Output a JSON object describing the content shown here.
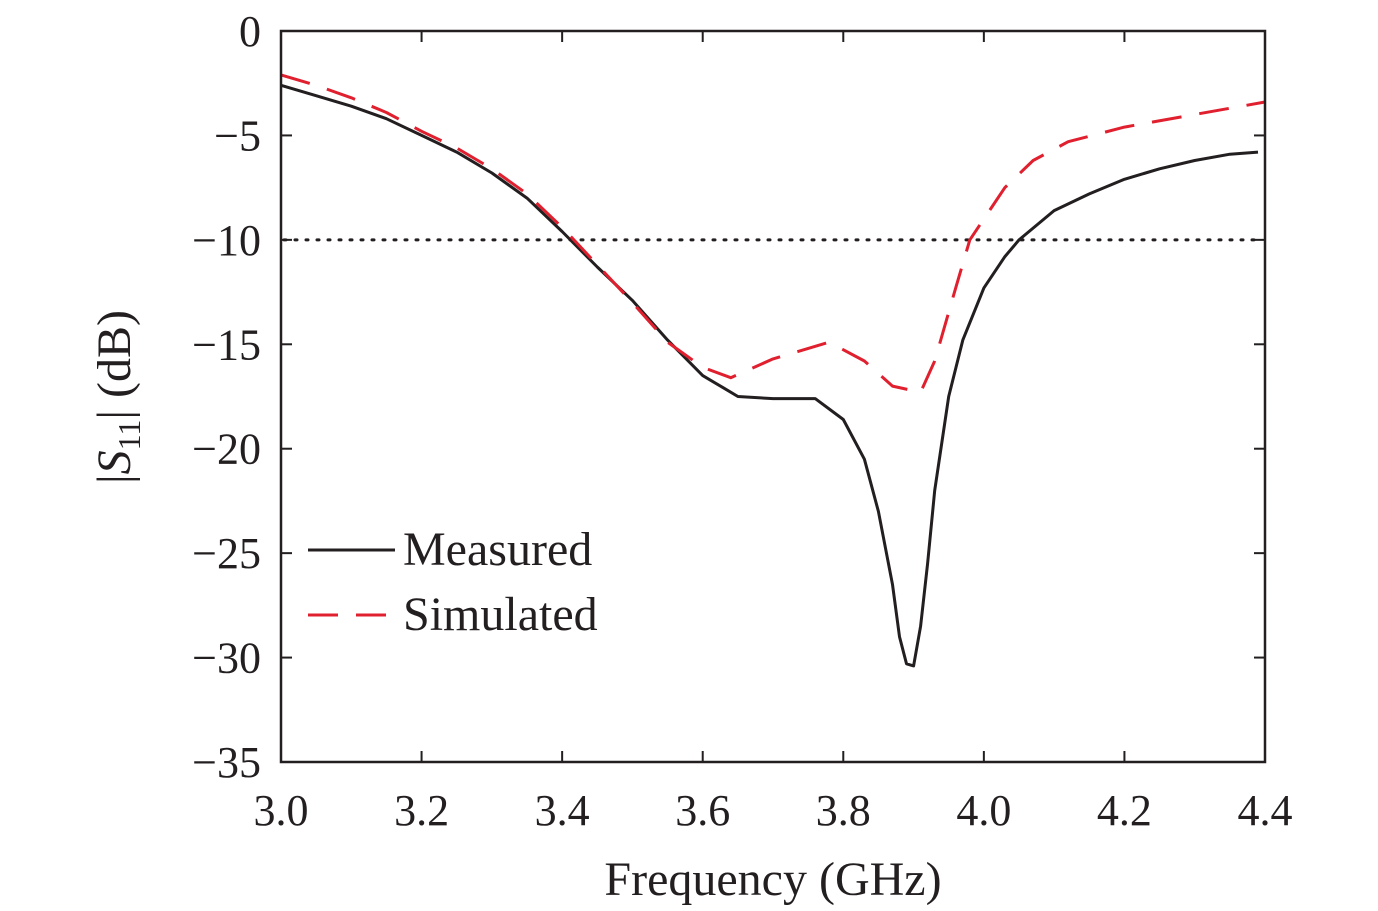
{
  "chart_data": {
    "type": "line",
    "xlabel": "Frequency (GHz)",
    "ylabel": {
      "prefix": "|",
      "symbol": "S",
      "subscript": "11",
      "suffix": "| (dB)"
    },
    "xlim": [
      3.0,
      4.4
    ],
    "ylim": [
      -35,
      0
    ],
    "x_ticks": [
      3.0,
      3.2,
      3.4,
      3.6,
      3.8,
      4.0,
      4.2,
      4.4
    ],
    "x_tick_labels": [
      "3.0",
      "3.2",
      "3.4",
      "3.6",
      "3.8",
      "4.0",
      "4.2",
      "4.4"
    ],
    "y_ticks": [
      0,
      -5,
      -10,
      -15,
      -20,
      -25,
      -30,
      -35
    ],
    "y_tick_labels": [
      "0",
      "−5",
      "−10",
      "−15",
      "−20",
      "−25",
      "−30",
      "−35"
    ],
    "grid": false,
    "legend_position": "bottom-left",
    "reference_line": {
      "y": -10,
      "style": "dotted",
      "color": "#231f20"
    },
    "series": [
      {
        "name": "Measured",
        "color": "#231f20",
        "style": "solid",
        "points": [
          [
            3.0,
            -2.6
          ],
          [
            3.05,
            -3.1
          ],
          [
            3.1,
            -3.6
          ],
          [
            3.15,
            -4.2
          ],
          [
            3.2,
            -5.0
          ],
          [
            3.25,
            -5.8
          ],
          [
            3.3,
            -6.8
          ],
          [
            3.35,
            -8.0
          ],
          [
            3.4,
            -9.6
          ],
          [
            3.45,
            -11.3
          ],
          [
            3.5,
            -12.9
          ],
          [
            3.55,
            -14.8
          ],
          [
            3.6,
            -16.5
          ],
          [
            3.63,
            -17.1
          ],
          [
            3.65,
            -17.5
          ],
          [
            3.7,
            -17.6
          ],
          [
            3.76,
            -17.6
          ],
          [
            3.8,
            -18.6
          ],
          [
            3.83,
            -20.5
          ],
          [
            3.85,
            -23.0
          ],
          [
            3.87,
            -26.5
          ],
          [
            3.88,
            -29.0
          ],
          [
            3.89,
            -30.3
          ],
          [
            3.9,
            -30.4
          ],
          [
            3.91,
            -28.5
          ],
          [
            3.92,
            -25.5
          ],
          [
            3.93,
            -22.0
          ],
          [
            3.95,
            -17.5
          ],
          [
            3.97,
            -14.8
          ],
          [
            4.0,
            -12.3
          ],
          [
            4.03,
            -10.8
          ],
          [
            4.05,
            -10.0
          ],
          [
            4.1,
            -8.6
          ],
          [
            4.15,
            -7.8
          ],
          [
            4.2,
            -7.1
          ],
          [
            4.25,
            -6.6
          ],
          [
            4.3,
            -6.2
          ],
          [
            4.35,
            -5.9
          ],
          [
            4.39,
            -5.8
          ]
        ]
      },
      {
        "name": "Simulated",
        "color": "#e0202f",
        "style": "dashed",
        "points": [
          [
            3.0,
            -2.1
          ],
          [
            3.05,
            -2.6
          ],
          [
            3.1,
            -3.2
          ],
          [
            3.15,
            -3.9
          ],
          [
            3.2,
            -4.8
          ],
          [
            3.25,
            -5.6
          ],
          [
            3.3,
            -6.6
          ],
          [
            3.35,
            -7.8
          ],
          [
            3.4,
            -9.4
          ],
          [
            3.45,
            -11.2
          ],
          [
            3.5,
            -13.0
          ],
          [
            3.55,
            -14.9
          ],
          [
            3.6,
            -16.1
          ],
          [
            3.64,
            -16.6
          ],
          [
            3.7,
            -15.7
          ],
          [
            3.78,
            -14.9
          ],
          [
            3.83,
            -15.8
          ],
          [
            3.87,
            -17.0
          ],
          [
            3.91,
            -17.3
          ],
          [
            3.93,
            -15.8
          ],
          [
            3.96,
            -12.3
          ],
          [
            3.98,
            -10.0
          ],
          [
            4.03,
            -7.5
          ],
          [
            4.07,
            -6.2
          ],
          [
            4.12,
            -5.3
          ],
          [
            4.2,
            -4.6
          ],
          [
            4.3,
            -4.0
          ],
          [
            4.4,
            -3.4
          ]
        ]
      }
    ]
  }
}
